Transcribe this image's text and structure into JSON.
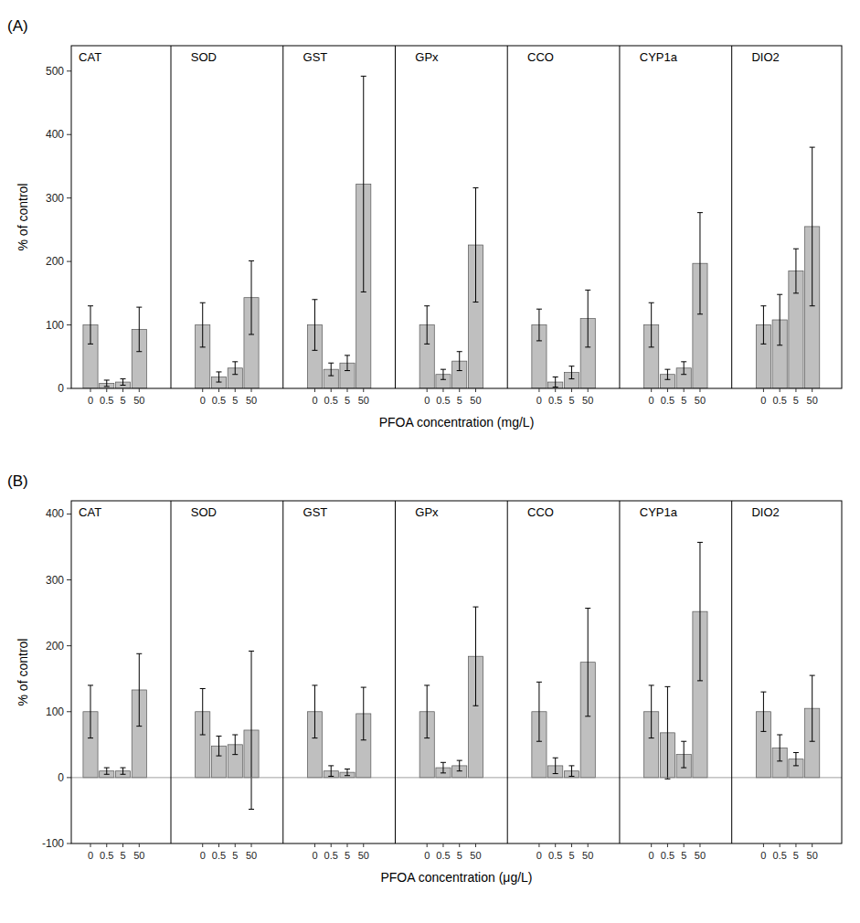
{
  "chart_data": [
    {
      "type": "bar",
      "title": "(A)",
      "xlabel": "PFOA concentration (mg/L)",
      "ylabel": "% of control",
      "ylim": [
        0,
        540
      ],
      "yticks": [
        0,
        100,
        200,
        300,
        400,
        500
      ],
      "grid": false,
      "color": "#bfbfbf",
      "categories": [
        "0",
        "0.5",
        "5",
        "50"
      ],
      "series": [
        {
          "name": "CAT",
          "values": [
            100,
            8,
            10,
            93
          ],
          "errors": [
            30,
            5,
            5,
            35
          ]
        },
        {
          "name": "SOD",
          "values": [
            100,
            18,
            32,
            143
          ],
          "errors": [
            35,
            8,
            10,
            58
          ]
        },
        {
          "name": "GST",
          "values": [
            100,
            30,
            40,
            322
          ],
          "errors": [
            40,
            10,
            12,
            170
          ]
        },
        {
          "name": "GPx",
          "values": [
            100,
            22,
            43,
            226
          ],
          "errors": [
            30,
            8,
            15,
            90
          ]
        },
        {
          "name": "CCO",
          "values": [
            100,
            10,
            25,
            110
          ],
          "errors": [
            25,
            8,
            10,
            45
          ]
        },
        {
          "name": "CYP1a",
          "values": [
            100,
            22,
            32,
            197
          ],
          "errors": [
            35,
            8,
            10,
            80
          ]
        },
        {
          "name": "DIO2",
          "values": [
            100,
            108,
            185,
            255
          ],
          "errors": [
            30,
            40,
            35,
            125
          ]
        }
      ]
    },
    {
      "type": "bar",
      "title": "(B)",
      "xlabel": "PFOA concentration (μg/L)",
      "ylabel": "% of control",
      "ylim": [
        -100,
        420
      ],
      "yticks": [
        -100,
        0,
        100,
        200,
        300,
        400
      ],
      "grid": false,
      "color": "#bfbfbf",
      "categories": [
        "0",
        "0.5",
        "5",
        "50"
      ],
      "series": [
        {
          "name": "CAT",
          "values": [
            100,
            10,
            10,
            133
          ],
          "errors": [
            40,
            5,
            5,
            55
          ]
        },
        {
          "name": "SOD",
          "values": [
            100,
            48,
            50,
            72
          ],
          "errors": [
            35,
            15,
            15,
            120
          ]
        },
        {
          "name": "GST",
          "values": [
            100,
            10,
            8,
            97
          ],
          "errors": [
            40,
            8,
            5,
            40
          ]
        },
        {
          "name": "GPx",
          "values": [
            100,
            15,
            18,
            184
          ],
          "errors": [
            40,
            8,
            8,
            75
          ]
        },
        {
          "name": "CCO",
          "values": [
            100,
            18,
            10,
            175
          ],
          "errors": [
            45,
            12,
            8,
            82
          ]
        },
        {
          "name": "CYP1a",
          "values": [
            100,
            68,
            35,
            252
          ],
          "errors": [
            40,
            70,
            20,
            105
          ]
        },
        {
          "name": "DIO2",
          "values": [
            100,
            45,
            28,
            105
          ],
          "errors": [
            30,
            20,
            10,
            50
          ]
        }
      ]
    }
  ]
}
